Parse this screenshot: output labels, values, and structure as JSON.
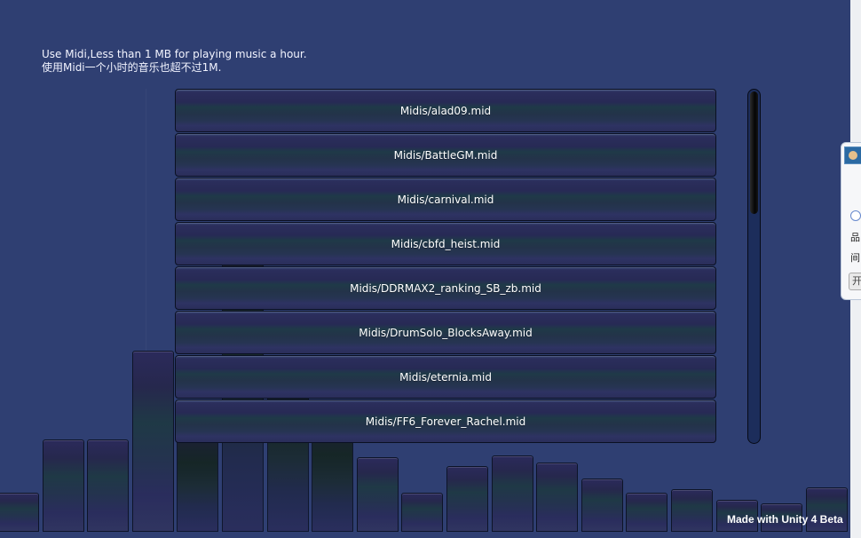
{
  "info": {
    "line1": "Use Midi,Less than 1 MB for playing music a hour.",
    "line2": "使用Midi一个小时的音乐也超不过1M."
  },
  "songs": [
    "Midis/alad09.mid",
    "Midis/BattleGM.mid",
    "Midis/carnival.mid",
    "Midis/cbfd_heist.mid",
    "Midis/DDRMAX2_ranking_SB_zb.mid",
    "Midis/DrumSolo_BlocksAway.mid",
    "Midis/eternia.mid",
    "Midis/FF6_Forever_Rachel.mid"
  ],
  "visualizer": {
    "levels": [
      0.087,
      0.206,
      0.206,
      0.405,
      0.206,
      0.603,
      0.329,
      0.23,
      0.167,
      0.087,
      0.147,
      0.171,
      0.155,
      0.119,
      0.087,
      0.095,
      0.071,
      0.063,
      0.099
    ]
  },
  "scrollbar": {
    "position": 0.0
  },
  "popup": {
    "glyph1": "品",
    "glyph2": "间",
    "button": "开"
  },
  "badge": "Made with Unity 4 Beta",
  "colors": {
    "background": "#2f3f72",
    "text": "#ffffff",
    "scrollbar_track": "#1c2d5b"
  }
}
